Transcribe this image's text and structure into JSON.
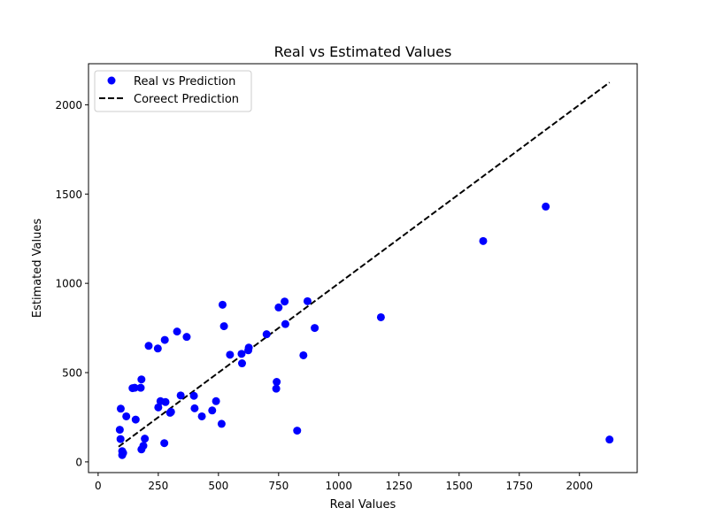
{
  "chart_data": {
    "type": "scatter",
    "title": "Real vs Estimated Values",
    "xlabel": "Real Values",
    "ylabel": "Estimated Values",
    "xlim": [
      -40,
      2240
    ],
    "ylim": [
      -60,
      2230
    ],
    "xticks": [
      0,
      250,
      500,
      750,
      1000,
      1250,
      1500,
      1750,
      2000
    ],
    "yticks": [
      0,
      500,
      1000,
      1500,
      2000
    ],
    "grid": false,
    "legend_position": "top-left",
    "series": [
      {
        "name": "Real vs Prediction",
        "kind": "scatter",
        "color": "#0000ff",
        "x": [
          90,
          93,
          94,
          100,
          100,
          104,
          117,
          143,
          152,
          156,
          177,
          180,
          180,
          188,
          194,
          210,
          248,
          250,
          259,
          275,
          277,
          280,
          299,
          303,
          328,
          343,
          368,
          398,
          401,
          431,
          474,
          490,
          513,
          517,
          523,
          548,
          596,
          598,
          624,
          626,
          700,
          740,
          742,
          750,
          775,
          778,
          827,
          853,
          870,
          900,
          1175,
          1600,
          1860,
          2125
        ],
        "y": [
          180,
          128,
          298,
          60,
          38,
          50,
          255,
          413,
          415,
          237,
          415,
          70,
          462,
          90,
          130,
          650,
          635,
          305,
          340,
          105,
          683,
          335,
          275,
          280,
          730,
          372,
          700,
          370,
          300,
          255,
          288,
          340,
          213,
          880,
          760,
          600,
          605,
          552,
          625,
          640,
          715,
          410,
          448,
          865,
          898,
          772,
          175,
          597,
          900,
          750,
          810,
          1237,
          1430,
          125
        ]
      },
      {
        "name": "Coreect Prediction",
        "kind": "line",
        "style": "dashed",
        "color": "#000000",
        "x": [
          85,
          2125
        ],
        "y": [
          85,
          2125
        ]
      }
    ]
  }
}
